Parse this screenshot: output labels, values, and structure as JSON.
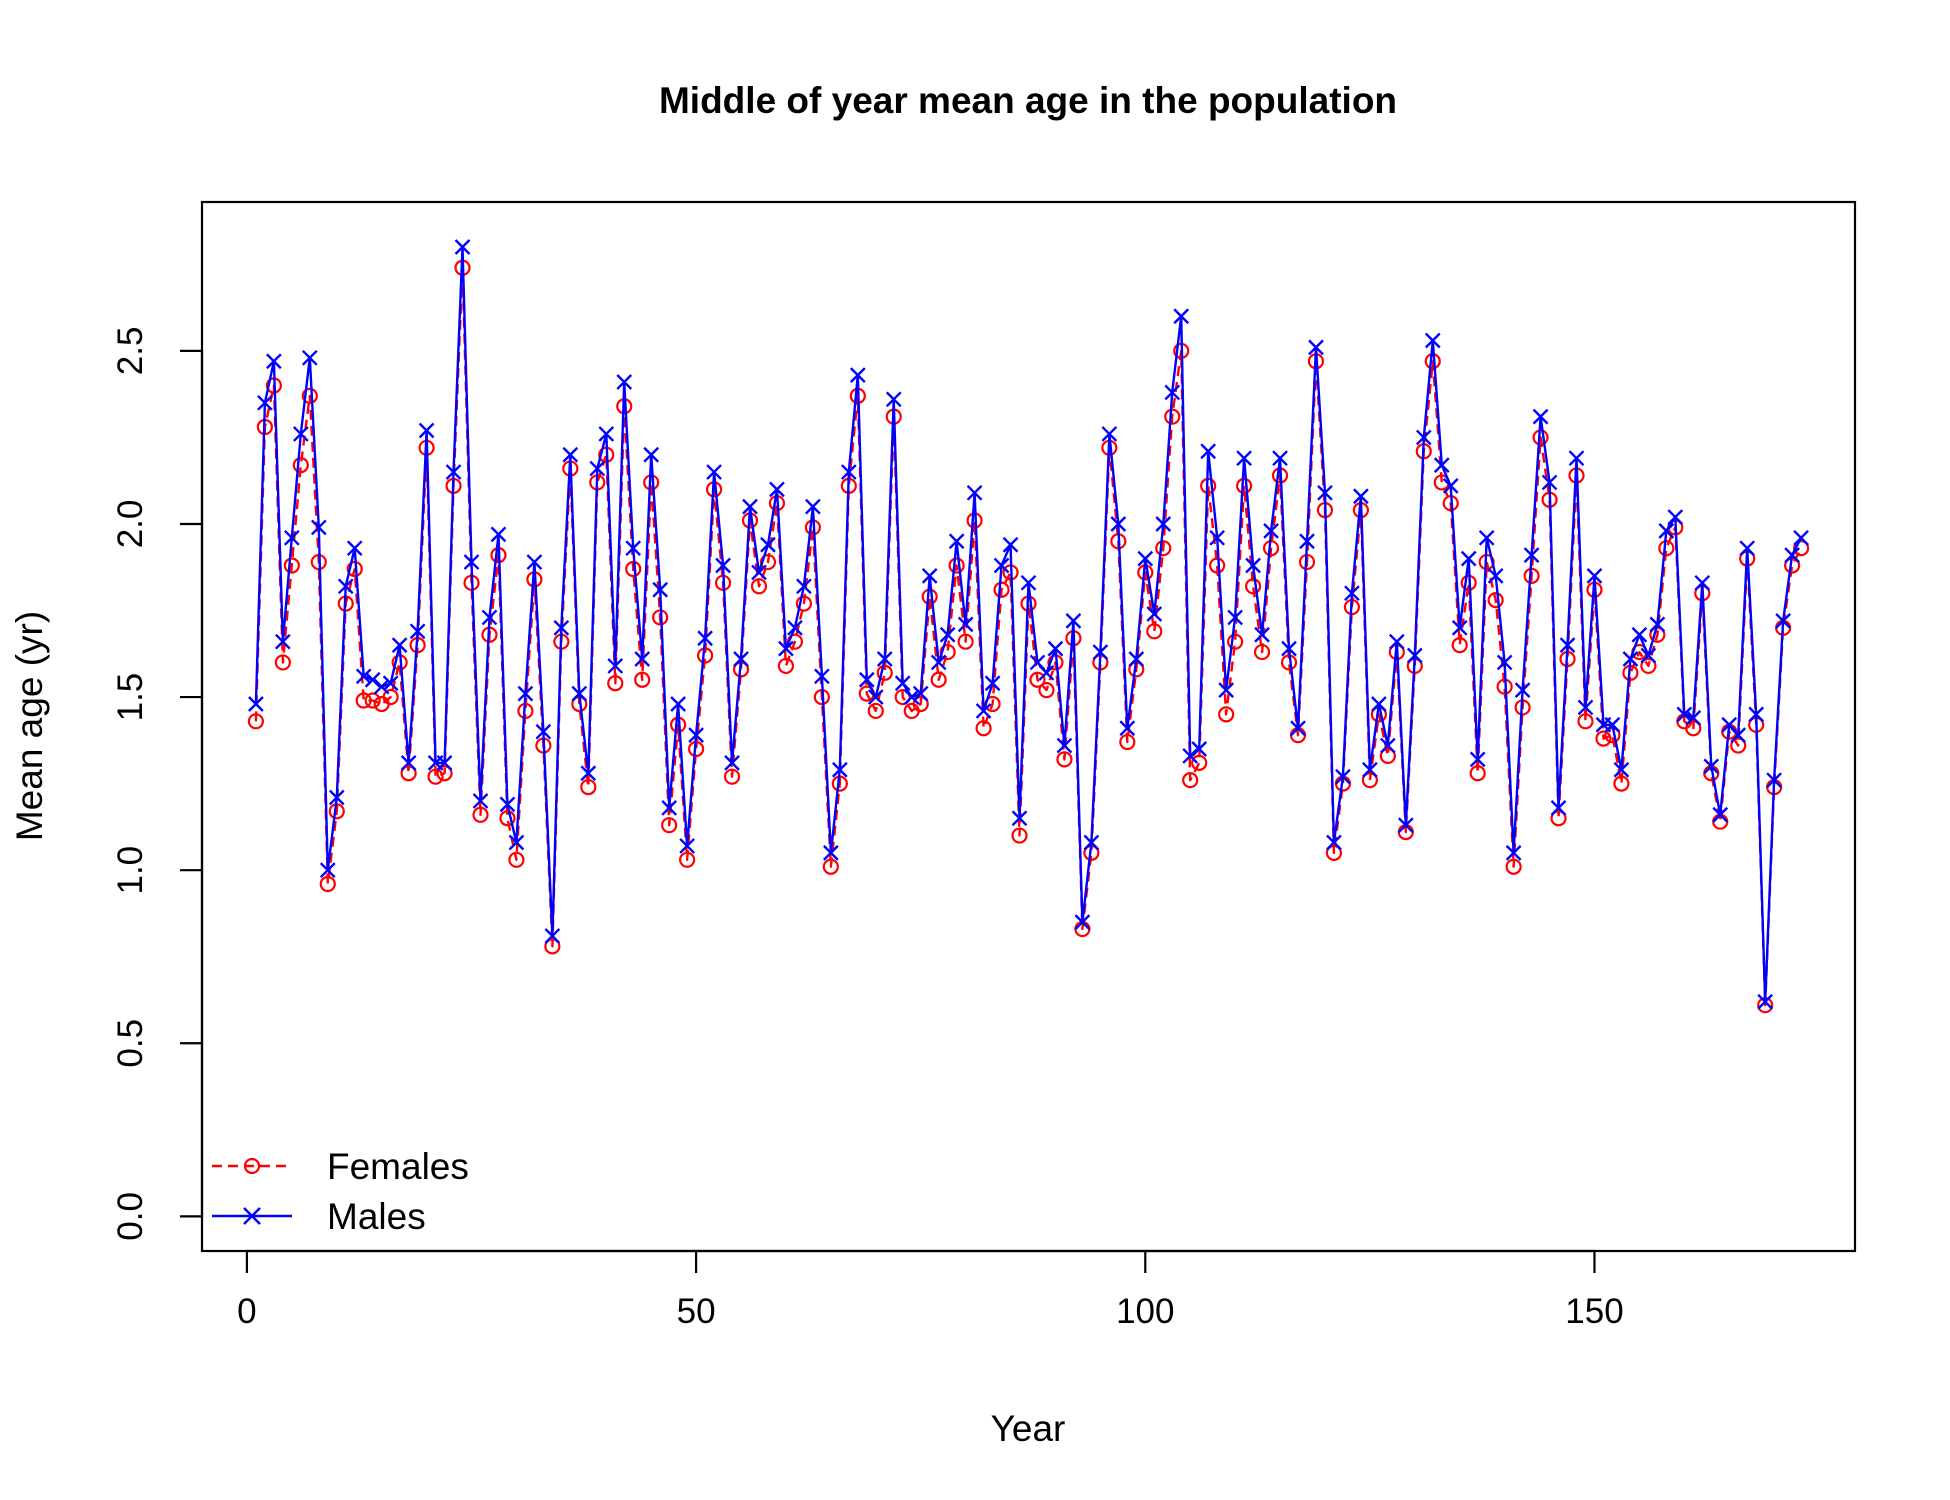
{
  "chart_data": {
    "type": "line",
    "title": "Middle of year mean age in the population",
    "xlabel": "Year",
    "ylabel": "Mean age (yr)",
    "xlim": [
      -5,
      179
    ],
    "ylim": [
      -0.1,
      2.93
    ],
    "xticks": [
      0,
      50,
      100,
      150
    ],
    "yticks": [
      0.0,
      0.5,
      1.0,
      1.5,
      2.0,
      2.5
    ],
    "ytick_labels": [
      "0.0",
      "0.5",
      "1.0",
      "1.5",
      "2.0",
      "2.5"
    ],
    "grid": false,
    "legend": {
      "position": "bottom-left",
      "entries": [
        "Females",
        "Males"
      ]
    },
    "x": [
      1,
      2,
      3,
      4,
      5,
      6,
      7,
      8,
      9,
      10,
      11,
      12,
      13,
      14,
      15,
      16,
      17,
      18,
      19,
      20,
      21,
      22,
      23,
      24,
      25,
      26,
      27,
      28,
      29,
      30,
      31,
      32,
      33,
      34,
      35,
      36,
      37,
      38,
      39,
      40,
      41,
      42,
      43,
      44,
      45,
      46,
      47,
      48,
      49,
      50,
      51,
      52,
      53,
      54,
      55,
      56,
      57,
      58,
      59,
      60,
      61,
      62,
      63,
      64,
      65,
      66,
      67,
      68,
      69,
      70,
      71,
      72,
      73,
      74,
      75,
      76,
      77,
      78,
      79,
      80,
      81,
      82,
      83,
      84,
      85,
      86,
      87,
      88,
      89,
      90,
      91,
      92,
      93,
      94,
      95,
      96,
      97,
      98,
      99,
      100,
      101,
      102,
      103,
      104,
      105,
      106,
      107,
      108,
      109,
      110,
      111,
      112,
      113,
      114,
      115,
      116,
      117,
      118,
      119,
      120,
      121,
      122,
      123,
      124,
      125,
      126,
      127,
      128,
      129,
      130,
      131,
      132,
      133,
      134,
      135,
      136,
      137,
      138,
      139,
      140,
      141,
      142,
      143,
      144,
      145,
      146,
      147,
      148,
      149,
      150,
      151,
      152,
      153,
      154,
      155,
      156,
      157,
      158,
      159,
      160,
      161,
      162,
      163,
      164,
      165,
      166,
      167,
      168,
      169,
      170,
      171,
      172,
      173
    ],
    "series": [
      {
        "name": "Females",
        "color": "#ff0000",
        "line_style": "dashed",
        "marker": "circle",
        "values": [
          1.43,
          2.28,
          2.4,
          1.6,
          1.88,
          2.17,
          2.37,
          1.89,
          0.96,
          1.17,
          1.77,
          1.87,
          1.49,
          1.49,
          1.48,
          1.5,
          1.6,
          1.28,
          1.65,
          2.22,
          1.27,
          1.28,
          2.11,
          2.74,
          1.83,
          1.16,
          1.68,
          1.91,
          1.15,
          1.03,
          1.46,
          1.84,
          1.36,
          0.78,
          1.66,
          2.16,
          1.48,
          1.24,
          2.12,
          2.2,
          1.54,
          2.34,
          1.87,
          1.55,
          2.12,
          1.73,
          1.13,
          1.42,
          1.03,
          1.35,
          1.62,
          2.1,
          1.83,
          1.27,
          1.58,
          2.01,
          1.82,
          1.89,
          2.06,
          1.59,
          1.66,
          1.77,
          1.99,
          1.5,
          1.01,
          1.25,
          2.11,
          2.37,
          1.51,
          1.46,
          1.57,
          2.31,
          1.5,
          1.46,
          1.48,
          1.79,
          1.55,
          1.63,
          1.88,
          1.66,
          2.01,
          1.41,
          1.48,
          1.81,
          1.86,
          1.1,
          1.77,
          1.55,
          1.52,
          1.6,
          1.32,
          1.67,
          0.83,
          1.05,
          1.6,
          2.22,
          1.95,
          1.37,
          1.58,
          1.86,
          1.69,
          1.93,
          2.31,
          2.5,
          1.26,
          1.31,
          2.11,
          1.88,
          1.45,
          1.66,
          2.11,
          1.82,
          1.63,
          1.93,
          2.14,
          1.6,
          1.39,
          1.89,
          2.47,
          2.04,
          1.05,
          1.25,
          1.76,
          2.04,
          1.26,
          1.45,
          1.33,
          1.63,
          1.11,
          1.59,
          2.21,
          2.47,
          2.12,
          2.06,
          1.65,
          1.83,
          1.28,
          1.89,
          1.78,
          1.53,
          1.01,
          1.47,
          1.85,
          2.25,
          2.07,
          1.15,
          1.61,
          2.14,
          1.43,
          1.81,
          1.38,
          1.39,
          1.25,
          1.57,
          1.63,
          1.59,
          1.68,
          1.93,
          1.99,
          1.43,
          1.41,
          1.8,
          1.28,
          1.14,
          1.4,
          1.36,
          1.9,
          1.42,
          0.61,
          1.24,
          1.7,
          1.88,
          1.93
        ]
      },
      {
        "name": "Males",
        "color": "#0000ff",
        "line_style": "solid",
        "marker": "x",
        "values": [
          1.48,
          2.35,
          2.47,
          1.66,
          1.96,
          2.26,
          2.48,
          1.99,
          1.0,
          1.21,
          1.82,
          1.93,
          1.56,
          1.55,
          1.53,
          1.54,
          1.65,
          1.31,
          1.69,
          2.27,
          1.31,
          1.31,
          2.15,
          2.8,
          1.89,
          1.2,
          1.73,
          1.97,
          1.19,
          1.08,
          1.51,
          1.89,
          1.4,
          0.81,
          1.7,
          2.2,
          1.51,
          1.28,
          2.16,
          2.26,
          1.59,
          2.41,
          1.93,
          1.61,
          2.2,
          1.81,
          1.18,
          1.48,
          1.07,
          1.39,
          1.67,
          2.15,
          1.88,
          1.31,
          1.61,
          2.05,
          1.86,
          1.94,
          2.1,
          1.64,
          1.7,
          1.82,
          2.05,
          1.56,
          1.05,
          1.29,
          2.15,
          2.43,
          1.55,
          1.5,
          1.61,
          2.36,
          1.54,
          1.5,
          1.51,
          1.85,
          1.6,
          1.68,
          1.95,
          1.71,
          2.09,
          1.46,
          1.54,
          1.88,
          1.94,
          1.15,
          1.83,
          1.6,
          1.57,
          1.64,
          1.36,
          1.72,
          0.85,
          1.08,
          1.63,
          2.26,
          2.0,
          1.41,
          1.61,
          1.9,
          1.74,
          2.0,
          2.38,
          2.6,
          1.33,
          1.35,
          2.21,
          1.96,
          1.52,
          1.73,
          2.19,
          1.88,
          1.68,
          1.98,
          2.19,
          1.64,
          1.41,
          1.95,
          2.51,
          2.09,
          1.08,
          1.27,
          1.8,
          2.08,
          1.29,
          1.48,
          1.36,
          1.66,
          1.13,
          1.62,
          2.25,
          2.53,
          2.17,
          2.11,
          1.7,
          1.9,
          1.32,
          1.96,
          1.85,
          1.6,
          1.05,
          1.52,
          1.91,
          2.31,
          2.12,
          1.18,
          1.65,
          2.19,
          1.47,
          1.85,
          1.42,
          1.42,
          1.29,
          1.61,
          1.68,
          1.62,
          1.71,
          1.98,
          2.02,
          1.45,
          1.44,
          1.83,
          1.3,
          1.16,
          1.42,
          1.39,
          1.93,
          1.45,
          0.62,
          1.26,
          1.72,
          1.91,
          1.96
        ]
      }
    ]
  }
}
